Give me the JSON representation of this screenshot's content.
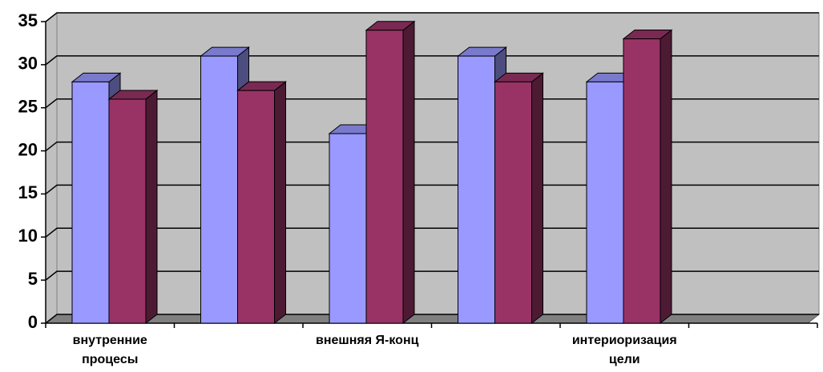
{
  "chart_data": {
    "type": "bar3d",
    "categories": [
      "внутренние процесы",
      null,
      "внешняя Я-конц",
      null,
      "интериоризация цели",
      null
    ],
    "series": [
      {
        "color": "#9999ff",
        "values": [
          28,
          31,
          22,
          31,
          28,
          null
        ]
      },
      {
        "color": "#993366",
        "values": [
          26,
          27,
          34,
          28,
          33,
          null
        ]
      }
    ],
    "ylim": [
      0,
      35
    ],
    "yticks": [
      0,
      5,
      10,
      15,
      20,
      25,
      30,
      35
    ],
    "grid": true
  }
}
